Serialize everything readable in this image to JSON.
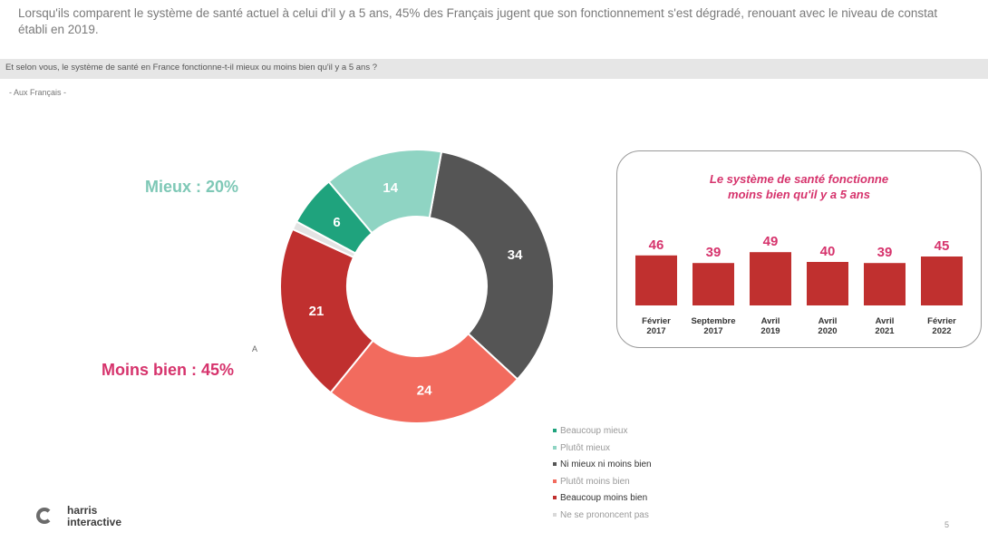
{
  "headline": "Lorsqu'ils comparent le système de santé actuel à celui d'il y a 5 ans, 45% des Français jugent que son fonctionnement s'est dégradé, renouant avec le niveau de constat établi en 2019.",
  "question": "Et selon vous, le système de santé en France fonctionne-t-il mieux ou moins bien qu'il y a 5 ans ?",
  "base": "- Aux Français -",
  "labels": {
    "mieux": "Mieux : 20%",
    "moins": "Moins bien : 45%",
    "small_marker": "A"
  },
  "inset": {
    "title_line1": "Le système de santé fonctionne",
    "title_line2": "moins bien qu'il y a 5 ans"
  },
  "legend": [
    {
      "label": "Beaucoup mieux",
      "color": "#1fa37d"
    },
    {
      "label": "Plutôt mieux",
      "color": "#8fd4c3"
    },
    {
      "label": "Ni mieux ni moins bien",
      "color": "#555555"
    },
    {
      "label": "Plutôt moins bien",
      "color": "#f26b5e"
    },
    {
      "label": "Beaucoup moins bien",
      "color": "#c0302f"
    },
    {
      "label": "Ne se prononcent pas",
      "color": "#d9d9d9"
    }
  ],
  "logo": {
    "line1": "harris",
    "line2": "interactive"
  },
  "page_number": "5",
  "chart_data": [
    {
      "type": "pie",
      "title": "",
      "categories": [
        "Beaucoup mieux",
        "Plutôt mieux",
        "Ni mieux ni moins bien",
        "Plutôt moins bien",
        "Beaucoup moins bien",
        "Ne se prononcent pas"
      ],
      "values": [
        6,
        14,
        34,
        24,
        21,
        1
      ],
      "value_labels": [
        "6",
        "14",
        "34",
        "24",
        "21",
        ""
      ],
      "colors": [
        "#1fa37d",
        "#8fd4c3",
        "#555555",
        "#f26b5e",
        "#c0302f",
        "#e3e3e3"
      ],
      "donut": true,
      "legend": "bottom-right"
    },
    {
      "type": "bar",
      "title": "Le système de santé fonctionne moins bien qu'il y a 5 ans",
      "categories": [
        [
          "Février",
          "2017"
        ],
        [
          "Septembre",
          "2017"
        ],
        [
          "Avril",
          "2019"
        ],
        [
          "Avril",
          "2020"
        ],
        [
          "Avril",
          "2021"
        ],
        [
          "Février",
          "2022"
        ]
      ],
      "values": [
        46,
        39,
        49,
        40,
        39,
        45
      ],
      "colors": [
        "#c0302f",
        "#c0302f",
        "#c0302f",
        "#c0302f",
        "#c0302f",
        "#c0302f"
      ],
      "label_color": "#d6336c"
    }
  ]
}
